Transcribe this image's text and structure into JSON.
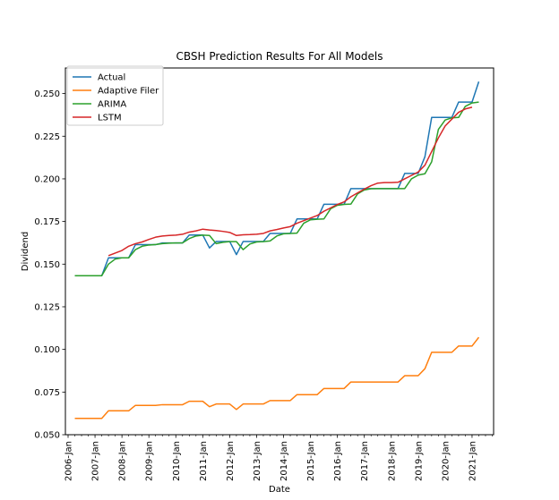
{
  "chart_data": {
    "type": "line",
    "title": "CBSH Prediction Results For All Models",
    "xlabel": "Date",
    "ylabel": "Dividend",
    "ylim": [
      0.05,
      0.265
    ],
    "xlim": [
      2005.9,
      2021.8
    ],
    "grid": false,
    "legend_position": "top-left",
    "xticks": [
      {
        "value": 2006,
        "label": "2006-Jan"
      },
      {
        "value": 2007,
        "label": "2007-Jan"
      },
      {
        "value": 2008,
        "label": "2008-Jan"
      },
      {
        "value": 2009,
        "label": "2009-Jan"
      },
      {
        "value": 2010,
        "label": "2010-Jan"
      },
      {
        "value": 2011,
        "label": "2011-Jan"
      },
      {
        "value": 2012,
        "label": "2012-Jan"
      },
      {
        "value": 2013,
        "label": "2013-Jan"
      },
      {
        "value": 2014,
        "label": "2014-Jan"
      },
      {
        "value": 2015,
        "label": "2015-Jan"
      },
      {
        "value": 2016,
        "label": "2016-Jan"
      },
      {
        "value": 2017,
        "label": "2017-Jan"
      },
      {
        "value": 2018,
        "label": "2018-Jan"
      },
      {
        "value": 2019,
        "label": "2019-Jan"
      },
      {
        "value": 2020,
        "label": "2020-Jan"
      },
      {
        "value": 2021,
        "label": "2021-Jan"
      }
    ],
    "yticks": [
      {
        "value": 0.05,
        "label": "0.050"
      },
      {
        "value": 0.075,
        "label": "0.075"
      },
      {
        "value": 0.1,
        "label": "0.100"
      },
      {
        "value": 0.125,
        "label": "0.125"
      },
      {
        "value": 0.15,
        "label": "0.150"
      },
      {
        "value": 0.175,
        "label": "0.175"
      },
      {
        "value": 0.2,
        "label": "0.200"
      },
      {
        "value": 0.225,
        "label": "0.225"
      },
      {
        "value": 0.25,
        "label": "0.250"
      }
    ],
    "series": [
      {
        "name": "Actual",
        "color": "#1f77b4",
        "points": [
          [
            2006.25,
            0.1432
          ],
          [
            2006.5,
            0.1432
          ],
          [
            2006.75,
            0.1432
          ],
          [
            2007.0,
            0.1432
          ],
          [
            2007.25,
            0.1432
          ],
          [
            2007.5,
            0.1537
          ],
          [
            2007.75,
            0.1537
          ],
          [
            2008.0,
            0.1537
          ],
          [
            2008.25,
            0.1537
          ],
          [
            2008.5,
            0.1614
          ],
          [
            2008.75,
            0.1614
          ],
          [
            2009.0,
            0.1614
          ],
          [
            2009.25,
            0.1614
          ],
          [
            2009.5,
            0.1624
          ],
          [
            2009.75,
            0.1624
          ],
          [
            2010.0,
            0.1624
          ],
          [
            2010.25,
            0.1624
          ],
          [
            2010.5,
            0.1671
          ],
          [
            2010.75,
            0.1671
          ],
          [
            2011.0,
            0.1671
          ],
          [
            2011.25,
            0.1595
          ],
          [
            2011.5,
            0.1633
          ],
          [
            2011.75,
            0.1633
          ],
          [
            2012.0,
            0.1633
          ],
          [
            2012.25,
            0.1556
          ],
          [
            2012.5,
            0.1633
          ],
          [
            2012.75,
            0.1633
          ],
          [
            2013.0,
            0.1633
          ],
          [
            2013.25,
            0.1633
          ],
          [
            2013.5,
            0.168
          ],
          [
            2013.75,
            0.168
          ],
          [
            2014.0,
            0.168
          ],
          [
            2014.25,
            0.168
          ],
          [
            2014.5,
            0.1765
          ],
          [
            2014.75,
            0.1765
          ],
          [
            2015.0,
            0.1765
          ],
          [
            2015.25,
            0.1765
          ],
          [
            2015.5,
            0.1851
          ],
          [
            2015.75,
            0.1851
          ],
          [
            2016.0,
            0.1851
          ],
          [
            2016.25,
            0.1851
          ],
          [
            2016.5,
            0.1943
          ],
          [
            2016.75,
            0.1943
          ],
          [
            2017.0,
            0.1943
          ],
          [
            2017.25,
            0.1943
          ],
          [
            2017.5,
            0.1943
          ],
          [
            2017.75,
            0.1943
          ],
          [
            2018.0,
            0.1943
          ],
          [
            2018.25,
            0.1943
          ],
          [
            2018.5,
            0.2032
          ],
          [
            2018.75,
            0.2032
          ],
          [
            2019.0,
            0.2032
          ],
          [
            2019.25,
            0.213
          ],
          [
            2019.5,
            0.236
          ],
          [
            2019.75,
            0.236
          ],
          [
            2020.0,
            0.236
          ],
          [
            2020.25,
            0.236
          ],
          [
            2020.5,
            0.245
          ],
          [
            2020.75,
            0.245
          ],
          [
            2021.0,
            0.245
          ],
          [
            2021.25,
            0.257
          ]
        ]
      },
      {
        "name": "Adaptive Filer",
        "color": "#ff7f0e",
        "points": [
          [
            2006.25,
            0.0596
          ],
          [
            2006.5,
            0.0596
          ],
          [
            2006.75,
            0.0596
          ],
          [
            2007.0,
            0.0596
          ],
          [
            2007.25,
            0.0596
          ],
          [
            2007.5,
            0.064
          ],
          [
            2007.75,
            0.064
          ],
          [
            2008.0,
            0.064
          ],
          [
            2008.25,
            0.064
          ],
          [
            2008.5,
            0.0672
          ],
          [
            2008.75,
            0.0672
          ],
          [
            2009.0,
            0.0672
          ],
          [
            2009.25,
            0.0672
          ],
          [
            2009.5,
            0.0676
          ],
          [
            2009.75,
            0.0676
          ],
          [
            2010.0,
            0.0676
          ],
          [
            2010.25,
            0.0676
          ],
          [
            2010.5,
            0.0696
          ],
          [
            2010.75,
            0.0696
          ],
          [
            2011.0,
            0.0696
          ],
          [
            2011.25,
            0.0664
          ],
          [
            2011.5,
            0.068
          ],
          [
            2011.75,
            0.068
          ],
          [
            2012.0,
            0.068
          ],
          [
            2012.25,
            0.0648
          ],
          [
            2012.5,
            0.068
          ],
          [
            2012.75,
            0.068
          ],
          [
            2013.0,
            0.068
          ],
          [
            2013.25,
            0.068
          ],
          [
            2013.5,
            0.07
          ],
          [
            2013.75,
            0.07
          ],
          [
            2014.0,
            0.07
          ],
          [
            2014.25,
            0.07
          ],
          [
            2014.5,
            0.0735
          ],
          [
            2014.75,
            0.0735
          ],
          [
            2015.0,
            0.0735
          ],
          [
            2015.25,
            0.0735
          ],
          [
            2015.5,
            0.0771
          ],
          [
            2015.75,
            0.0771
          ],
          [
            2016.0,
            0.0771
          ],
          [
            2016.25,
            0.0771
          ],
          [
            2016.5,
            0.0809
          ],
          [
            2016.75,
            0.0809
          ],
          [
            2017.0,
            0.0809
          ],
          [
            2017.25,
            0.0809
          ],
          [
            2017.5,
            0.0809
          ],
          [
            2017.75,
            0.0809
          ],
          [
            2018.0,
            0.0809
          ],
          [
            2018.25,
            0.0809
          ],
          [
            2018.5,
            0.0846
          ],
          [
            2018.75,
            0.0846
          ],
          [
            2019.0,
            0.0846
          ],
          [
            2019.25,
            0.0887
          ],
          [
            2019.5,
            0.0983
          ],
          [
            2019.75,
            0.0983
          ],
          [
            2020.0,
            0.0983
          ],
          [
            2020.25,
            0.0983
          ],
          [
            2020.5,
            0.102
          ],
          [
            2020.75,
            0.102
          ],
          [
            2021.0,
            0.102
          ],
          [
            2021.25,
            0.1071
          ]
        ]
      },
      {
        "name": "ARIMA",
        "color": "#2ca02c",
        "points": [
          [
            2006.25,
            0.1432
          ],
          [
            2006.5,
            0.1432
          ],
          [
            2006.75,
            0.1432
          ],
          [
            2007.0,
            0.1432
          ],
          [
            2007.25,
            0.1432
          ],
          [
            2007.5,
            0.15
          ],
          [
            2007.75,
            0.153
          ],
          [
            2008.0,
            0.1537
          ],
          [
            2008.25,
            0.1537
          ],
          [
            2008.5,
            0.1585
          ],
          [
            2008.75,
            0.1605
          ],
          [
            2009.0,
            0.1612
          ],
          [
            2009.25,
            0.1615
          ],
          [
            2009.5,
            0.162
          ],
          [
            2009.75,
            0.1623
          ],
          [
            2010.0,
            0.1624
          ],
          [
            2010.25,
            0.1625
          ],
          [
            2010.5,
            0.165
          ],
          [
            2010.75,
            0.1665
          ],
          [
            2011.0,
            0.167
          ],
          [
            2011.25,
            0.1668
          ],
          [
            2011.5,
            0.162
          ],
          [
            2011.75,
            0.1628
          ],
          [
            2012.0,
            0.1632
          ],
          [
            2012.25,
            0.1632
          ],
          [
            2012.5,
            0.1585
          ],
          [
            2012.75,
            0.1618
          ],
          [
            2013.0,
            0.163
          ],
          [
            2013.25,
            0.1632
          ],
          [
            2013.5,
            0.1636
          ],
          [
            2013.75,
            0.1665
          ],
          [
            2014.0,
            0.1678
          ],
          [
            2014.25,
            0.168
          ],
          [
            2014.5,
            0.1682
          ],
          [
            2014.75,
            0.174
          ],
          [
            2015.0,
            0.176
          ],
          [
            2015.25,
            0.1763
          ],
          [
            2015.5,
            0.1765
          ],
          [
            2015.75,
            0.1825
          ],
          [
            2016.0,
            0.1845
          ],
          [
            2016.25,
            0.185
          ],
          [
            2016.5,
            0.1852
          ],
          [
            2016.75,
            0.1912
          ],
          [
            2017.0,
            0.1935
          ],
          [
            2017.25,
            0.1942
          ],
          [
            2017.5,
            0.1943
          ],
          [
            2017.75,
            0.1943
          ],
          [
            2018.0,
            0.1943
          ],
          [
            2018.25,
            0.1943
          ],
          [
            2018.5,
            0.1943
          ],
          [
            2018.75,
            0.2
          ],
          [
            2019.0,
            0.2022
          ],
          [
            2019.25,
            0.203
          ],
          [
            2019.5,
            0.21
          ],
          [
            2019.75,
            0.229
          ],
          [
            2020.0,
            0.2345
          ],
          [
            2020.25,
            0.2358
          ],
          [
            2020.5,
            0.236
          ],
          [
            2020.75,
            0.2425
          ],
          [
            2021.0,
            0.2445
          ],
          [
            2021.25,
            0.245
          ]
        ]
      },
      {
        "name": "LSTM",
        "color": "#d62728",
        "points": [
          [
            2007.5,
            0.155
          ],
          [
            2007.75,
            0.1565
          ],
          [
            2008.0,
            0.158
          ],
          [
            2008.25,
            0.1605
          ],
          [
            2008.5,
            0.162
          ],
          [
            2008.75,
            0.163
          ],
          [
            2009.0,
            0.1645
          ],
          [
            2009.25,
            0.1658
          ],
          [
            2009.5,
            0.1665
          ],
          [
            2009.75,
            0.1668
          ],
          [
            2010.0,
            0.167
          ],
          [
            2010.25,
            0.1675
          ],
          [
            2010.5,
            0.1688
          ],
          [
            2010.75,
            0.1695
          ],
          [
            2011.0,
            0.1705
          ],
          [
            2011.25,
            0.17
          ],
          [
            2011.5,
            0.1697
          ],
          [
            2011.75,
            0.1692
          ],
          [
            2012.0,
            0.1686
          ],
          [
            2012.25,
            0.1668
          ],
          [
            2012.5,
            0.1672
          ],
          [
            2012.75,
            0.1673
          ],
          [
            2013.0,
            0.1675
          ],
          [
            2013.25,
            0.168
          ],
          [
            2013.5,
            0.1695
          ],
          [
            2013.75,
            0.1703
          ],
          [
            2014.0,
            0.1712
          ],
          [
            2014.25,
            0.172
          ],
          [
            2014.5,
            0.174
          ],
          [
            2014.75,
            0.1755
          ],
          [
            2015.0,
            0.177
          ],
          [
            2015.25,
            0.1785
          ],
          [
            2015.5,
            0.181
          ],
          [
            2015.75,
            0.183
          ],
          [
            2016.0,
            0.185
          ],
          [
            2016.25,
            0.1865
          ],
          [
            2016.5,
            0.1895
          ],
          [
            2016.75,
            0.1918
          ],
          [
            2017.0,
            0.194
          ],
          [
            2017.25,
            0.196
          ],
          [
            2017.5,
            0.1975
          ],
          [
            2017.75,
            0.1978
          ],
          [
            2018.0,
            0.1978
          ],
          [
            2018.25,
            0.198
          ],
          [
            2018.5,
            0.2
          ],
          [
            2018.75,
            0.202
          ],
          [
            2019.0,
            0.204
          ],
          [
            2019.25,
            0.208
          ],
          [
            2019.5,
            0.216
          ],
          [
            2019.75,
            0.224
          ],
          [
            2020.0,
            0.231
          ],
          [
            2020.25,
            0.235
          ],
          [
            2020.5,
            0.239
          ],
          [
            2020.75,
            0.241
          ],
          [
            2021.0,
            0.242
          ]
        ]
      }
    ]
  }
}
